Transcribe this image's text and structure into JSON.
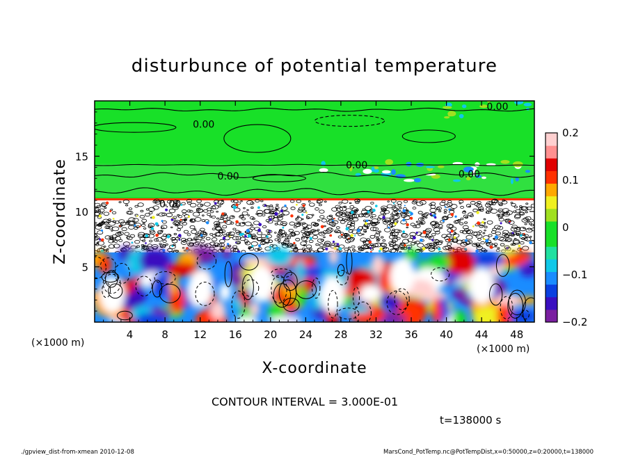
{
  "chart_data": {
    "type": "heatmap",
    "title": "disturbunce of potential temperature",
    "xlabel": "X-coordinate",
    "ylabel": "Z-coordinate",
    "x_unit": "(×1000 m)",
    "y_unit": "(×1000 m)",
    "xlim": [
      0,
      50
    ],
    "ylim": [
      0,
      20
    ],
    "x_ticks": [
      4,
      8,
      12,
      16,
      20,
      24,
      28,
      32,
      36,
      40,
      44,
      48
    ],
    "y_ticks": [
      5,
      10,
      15
    ],
    "colorbar": {
      "range": [
        -0.2,
        0.2
      ],
      "tick_values": [
        0.2,
        0.1,
        0,
        -0.1,
        -0.2
      ],
      "tick_labels": [
        "0.2",
        "0.1",
        "0",
        "−0.1",
        "−0.2"
      ],
      "colors": [
        "#7a1fa0",
        "#3a0fc0",
        "#0a40e0",
        "#1a8cff",
        "#10c8e8",
        "#20e0a0",
        "#18e028",
        "#18e028",
        "#a0e020",
        "#f0f020",
        "#ffa800",
        "#ff3000",
        "#e00000",
        "#ff9090",
        "#ffd0d0"
      ]
    },
    "contour_labels": [
      {
        "text": "0.00",
        "x": 45.8,
        "z": 19.5
      },
      {
        "text": "0.00",
        "x": 12.4,
        "z": 17.9
      },
      {
        "text": "0.00",
        "x": 29.8,
        "z": 14.2
      },
      {
        "text": "0.00",
        "x": 15.2,
        "z": 13.2
      },
      {
        "text": "0.00",
        "x": 42.6,
        "z": 13.4
      },
      {
        "text": "0.00",
        "x": 8.6,
        "z": 10.7
      }
    ],
    "contour_interval_text": "CONTOUR INTERVAL = 3.000E-01",
    "time_text": "t=138000 s",
    "footer_left": "./gpview_dist-from-xmean 2010-12-08",
    "footer_right": "MarsCond_PotTemp.nc@PotTempDist,x=0:50000,z=0:20000,t=138000"
  }
}
